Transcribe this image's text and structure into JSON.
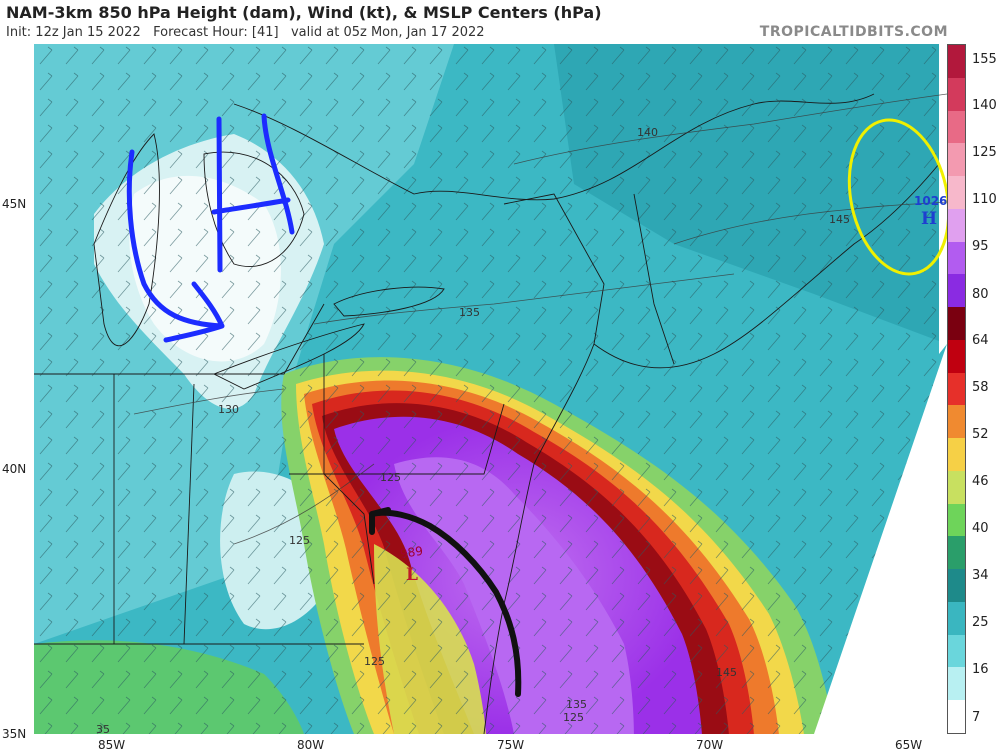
{
  "header": {
    "title": "NAM-3km 850 hPa Height (dam), Wind (kt), & MSLP Centers (hPa)",
    "init": "Init: 12z Jan 15 2022",
    "forecast_hour": "Forecast Hour: [41]",
    "valid": "valid at 05z Mon, Jan 17 2022",
    "credit": "TROPICALTIDBITS.COM"
  },
  "axes": {
    "latitude": [
      "45N",
      "40N",
      "35N"
    ],
    "longitude": [
      "85W",
      "80W",
      "75W",
      "70W",
      "65W"
    ]
  },
  "colorbar": {
    "labels": [
      "155",
      "140",
      "125",
      "110",
      "95",
      "80",
      "64",
      "58",
      "52",
      "46",
      "40",
      "34",
      "25",
      "16",
      "7"
    ],
    "colors": [
      "#b2183c",
      "#d33a5c",
      "#e86a86",
      "#f39ab0",
      "#f7b8cb",
      "#e0a0ef",
      "#b25cf0",
      "#8a2be2",
      "#7a0010",
      "#c00010",
      "#e6302a",
      "#f08a30",
      "#f6d046",
      "#c8e060",
      "#6ed45a",
      "#2a9e6a",
      "#1e8a8a",
      "#3ab6c0",
      "#6ad6dc",
      "#b8f0f2",
      "#ffffff"
    ]
  },
  "map": {
    "contours": [
      "140",
      "145",
      "135",
      "130",
      "125",
      "125",
      "145",
      "125",
      "135",
      "125",
      "35"
    ],
    "pressure_centers": {
      "low": {
        "letter": "L",
        "value": "989"
      },
      "high": {
        "letter": "H",
        "value": "1026"
      }
    }
  },
  "annotations": {
    "pen_colors": {
      "blue": "#1c2cff",
      "black": "#111111",
      "yellow": "#f0f000"
    }
  }
}
